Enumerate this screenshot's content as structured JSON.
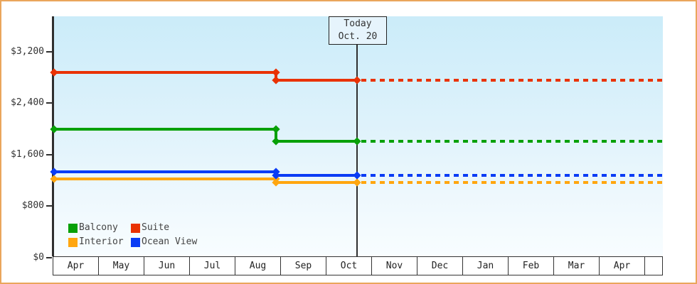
{
  "chart_data": {
    "type": "line",
    "title": "",
    "today_marker": {
      "line1": "Today",
      "line2": "Oct. 20"
    },
    "x_axis": {
      "months": [
        "Apr",
        "May",
        "Jun",
        "Jul",
        "Aug",
        "Sep",
        "Oct",
        "Nov",
        "Dec",
        "Jan",
        "Feb",
        "Mar",
        "Apr"
      ]
    },
    "y_axis": {
      "tick_values": [
        0,
        800,
        1600,
        2400,
        3200
      ],
      "tick_labels": [
        "$0",
        "$800",
        "$1,600",
        "$2,400",
        "$3,200"
      ],
      "range": [
        0,
        3750
      ],
      "grid": "off"
    },
    "series": [
      {
        "name": "Balcony",
        "slug": "balcony",
        "color": "#07a007",
        "price_before_change": 1990,
        "price_after_change": 1810
      },
      {
        "name": "Suite",
        "slug": "suite",
        "color": "#e93203",
        "price_before_change": 2880,
        "price_after_change": 2760
      },
      {
        "name": "Interior",
        "slug": "interior",
        "color": "#ffa60f",
        "price_before_change": 1220,
        "price_after_change": 1170
      },
      {
        "name": "Ocean View",
        "slug": "ocean-view",
        "color": "#0a3cf5",
        "price_before_change": 1330,
        "price_after_change": 1280
      }
    ],
    "price_change_point": "late Aug",
    "future_style": "dotted after Today",
    "legend": {
      "position": "bottom-left inside plot",
      "order": [
        "Balcony",
        "Suite",
        "Interior",
        "Ocean View"
      ]
    }
  },
  "colors": {
    "page_border": "#eaa65c",
    "plot_gradient_top": "#cbecf9",
    "plot_gradient_bottom": "#f8fdff",
    "axis": "#2f2f2f",
    "today_box_fill": "#e6f4fc"
  }
}
